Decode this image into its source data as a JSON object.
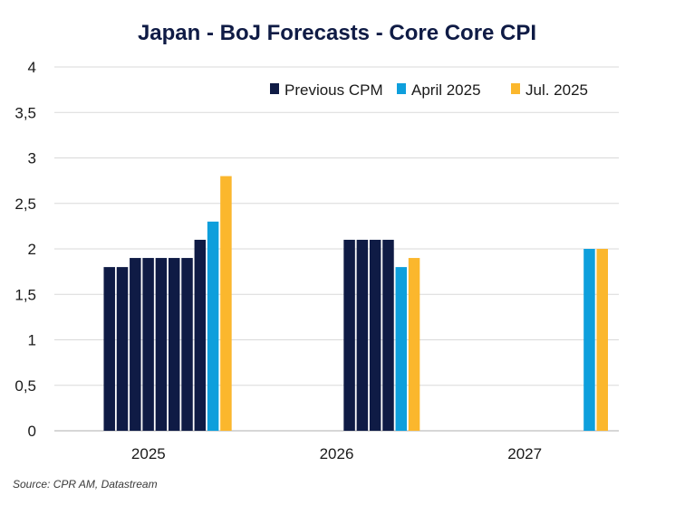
{
  "chart_data": {
    "type": "bar",
    "title": "Japan - BoJ Forecasts - Core Core CPI",
    "xlabel": "",
    "ylabel": "",
    "ylim": [
      0,
      4
    ],
    "yticks": [
      "0",
      "0,5",
      "1",
      "1,5",
      "2",
      "2,5",
      "3",
      "3,5",
      "4"
    ],
    "grid": true,
    "legend_position": "top-right",
    "categories": [
      "2025",
      "2026",
      "2027"
    ],
    "series": [
      {
        "name": "Previous CPM",
        "color": "#0f1b45",
        "values": [
          [
            1.8,
            1.8,
            1.9,
            1.9,
            1.9,
            1.9,
            1.9,
            2.1
          ],
          [
            2.1,
            2.1,
            2.1,
            2.1
          ],
          []
        ]
      },
      {
        "name": "April 2025",
        "color": "#0e9fdc",
        "values": [
          [
            2.3
          ],
          [
            1.8
          ],
          [
            2.0
          ]
        ]
      },
      {
        "name": "Jul. 2025",
        "color": "#fbb72d",
        "values": [
          [
            2.8
          ],
          [
            1.9
          ],
          [
            2.0
          ]
        ]
      }
    ]
  },
  "source": "Source: CPR AM, Datastream"
}
